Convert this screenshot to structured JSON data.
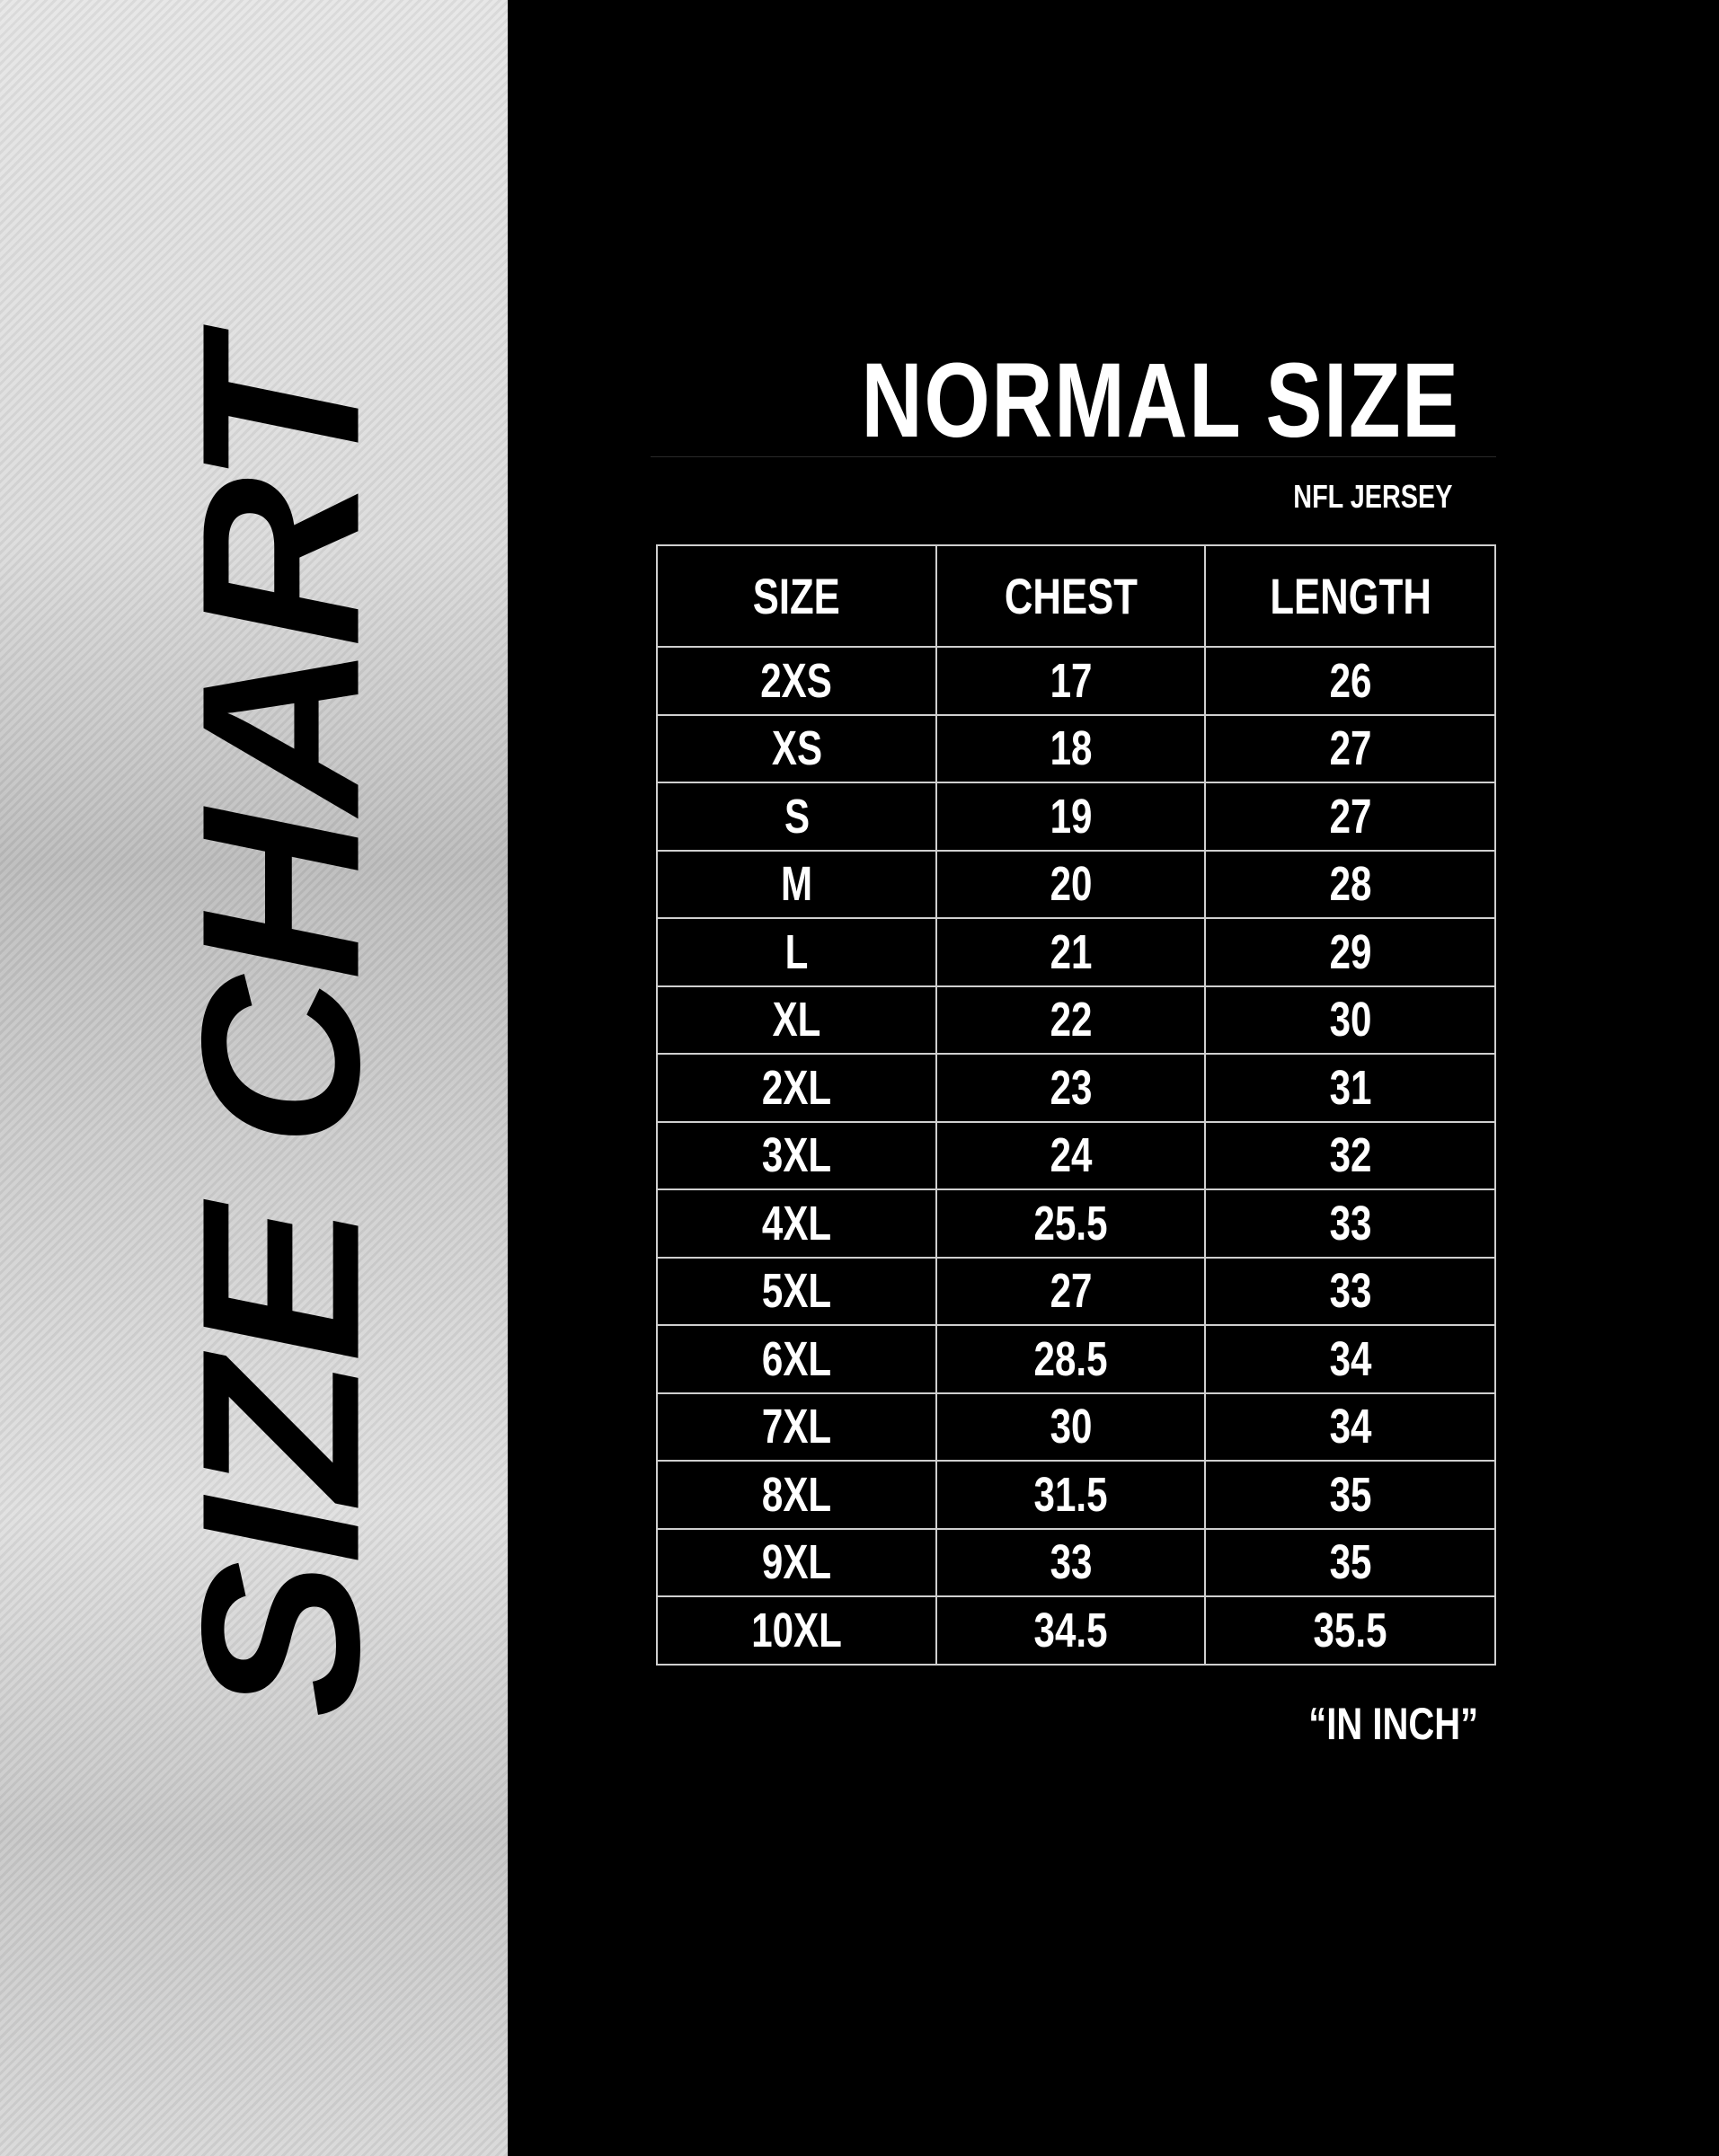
{
  "side_title": "SIZE CHART",
  "title": "NORMAL SIZE",
  "subtitle": "NFL JERSEY",
  "table": {
    "headers": [
      "SIZE",
      "CHEST",
      "LENGTH"
    ],
    "rows": [
      [
        "2XS",
        "17",
        "26"
      ],
      [
        "XS",
        "18",
        "27"
      ],
      [
        "S",
        "19",
        "27"
      ],
      [
        "M",
        "20",
        "28"
      ],
      [
        "L",
        "21",
        "29"
      ],
      [
        "XL",
        "22",
        "30"
      ],
      [
        "2XL",
        "23",
        "31"
      ],
      [
        "3XL",
        "24",
        "32"
      ],
      [
        "4XL",
        "25.5",
        "33"
      ],
      [
        "5XL",
        "27",
        "33"
      ],
      [
        "6XL",
        "28.5",
        "34"
      ],
      [
        "7XL",
        "30",
        "34"
      ],
      [
        "8XL",
        "31.5",
        "35"
      ],
      [
        "9XL",
        "33",
        "35"
      ],
      [
        "10XL",
        "34.5",
        "35.5"
      ]
    ]
  },
  "unit_note": "“IN INCH”"
}
